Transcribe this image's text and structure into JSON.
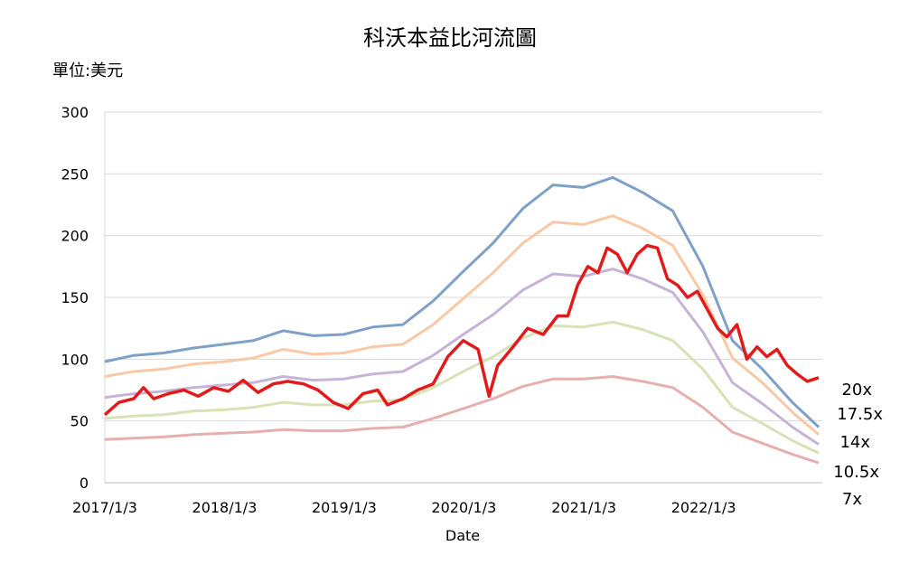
{
  "chart_data": {
    "type": "line",
    "title": "科沃本益比河流圖",
    "unit_label": "單位:美元",
    "xlabel": "Date",
    "ylabel": "",
    "ylim": [
      0,
      300
    ],
    "yticks": [
      "0",
      "50",
      "100",
      "150",
      "200",
      "250",
      "300"
    ],
    "xlim": [
      "2017-01-03",
      "2022-12-31"
    ],
    "xticks": [
      {
        "date": "2017-01-03",
        "label": "2017/1/3"
      },
      {
        "date": "2018-01-03",
        "label": "2018/1/3"
      },
      {
        "date": "2019-01-03",
        "label": "2019/1/3"
      },
      {
        "date": "2020-01-03",
        "label": "2020/1/3"
      },
      {
        "date": "2021-01-03",
        "label": "2021/1/3"
      },
      {
        "date": "2022-01-03",
        "label": "2022/1/3"
      }
    ],
    "grid": "horizontal",
    "x": [
      "2017-01-03",
      "2017-04-01",
      "2017-07-01",
      "2017-10-01",
      "2018-01-01",
      "2018-04-01",
      "2018-07-01",
      "2018-10-01",
      "2019-01-01",
      "2019-04-01",
      "2019-07-01",
      "2019-10-01",
      "2020-01-01",
      "2020-04-01",
      "2020-07-01",
      "2020-10-01",
      "2021-01-01",
      "2021-04-01",
      "2021-07-01",
      "2021-10-01",
      "2022-01-01",
      "2022-04-01",
      "2022-07-01",
      "2022-10-01",
      "2022-12-20"
    ],
    "series": [
      {
        "name": "20x",
        "color": "#7fa1c8",
        "values": [
          98,
          103,
          105,
          109,
          112,
          115,
          123,
          119,
          120,
          126,
          128,
          147,
          171,
          194,
          222,
          241,
          239,
          247,
          235,
          220,
          175,
          115,
          92,
          65,
          45
        ]
      },
      {
        "name": "17.5x",
        "color": "#f9c8a5",
        "values": [
          86,
          90,
          92,
          96,
          98,
          101,
          108,
          104,
          105,
          110,
          112,
          128,
          149,
          170,
          194,
          211,
          209,
          216,
          206,
          192,
          152,
          101,
          81,
          57,
          39
        ]
      },
      {
        "name": "14x",
        "color": "#c6b4d6",
        "values": [
          69,
          72,
          74,
          77,
          79,
          81,
          86,
          83,
          84,
          88,
          90,
          103,
          120,
          136,
          156,
          169,
          167,
          173,
          165,
          154,
          122,
          81,
          64,
          45,
          31
        ]
      },
      {
        "name": "10.5x",
        "color": "#d6e3b4",
        "values": [
          52,
          54,
          55,
          58,
          59,
          61,
          65,
          63,
          63,
          66,
          67,
          77,
          90,
          102,
          117,
          127,
          126,
          130,
          124,
          115,
          92,
          61,
          48,
          34,
          24
        ]
      },
      {
        "name": "7x",
        "color": "#e6afaf",
        "values": [
          35,
          36,
          37,
          39,
          40,
          41,
          43,
          42,
          42,
          44,
          45,
          52,
          60,
          68,
          78,
          84,
          84,
          86,
          82,
          77,
          61,
          41,
          32,
          23,
          16
        ]
      },
      {
        "name": "",
        "color": "#e31a1c",
        "x": [
          "2017-01-03",
          "2017-02-15",
          "2017-04-01",
          "2017-05-01",
          "2017-06-01",
          "2017-07-15",
          "2017-09-01",
          "2017-10-15",
          "2017-12-01",
          "2018-01-15",
          "2018-03-01",
          "2018-04-15",
          "2018-06-01",
          "2018-07-15",
          "2018-09-01",
          "2018-10-15",
          "2018-12-01",
          "2019-01-15",
          "2019-03-01",
          "2019-04-15",
          "2019-05-15",
          "2019-07-01",
          "2019-08-15",
          "2019-10-01",
          "2019-11-15",
          "2020-01-01",
          "2020-02-15",
          "2020-03-20",
          "2020-04-15",
          "2020-06-01",
          "2020-07-15",
          "2020-09-01",
          "2020-10-15",
          "2020-11-15",
          "2020-12-15",
          "2021-01-15",
          "2021-02-15",
          "2021-03-15",
          "2021-04-15",
          "2021-05-15",
          "2021-06-15",
          "2021-07-15",
          "2021-08-15",
          "2021-09-15",
          "2021-10-15",
          "2021-11-15",
          "2021-12-15",
          "2022-01-15",
          "2022-02-15",
          "2022-03-15",
          "2022-04-15",
          "2022-05-15",
          "2022-06-15",
          "2022-07-15",
          "2022-08-15",
          "2022-09-15",
          "2022-10-15",
          "2022-11-15",
          "2022-12-20"
        ],
        "values": [
          55,
          65,
          68,
          77,
          68,
          72,
          75,
          70,
          77,
          74,
          83,
          73,
          80,
          82,
          80,
          75,
          65,
          60,
          72,
          75,
          63,
          68,
          75,
          80,
          102,
          115,
          108,
          70,
          95,
          110,
          125,
          120,
          135,
          135,
          160,
          175,
          170,
          190,
          185,
          170,
          185,
          192,
          190,
          165,
          160,
          150,
          155,
          140,
          125,
          118,
          128,
          100,
          110,
          102,
          108,
          95,
          88,
          82,
          85
        ]
      }
    ]
  }
}
